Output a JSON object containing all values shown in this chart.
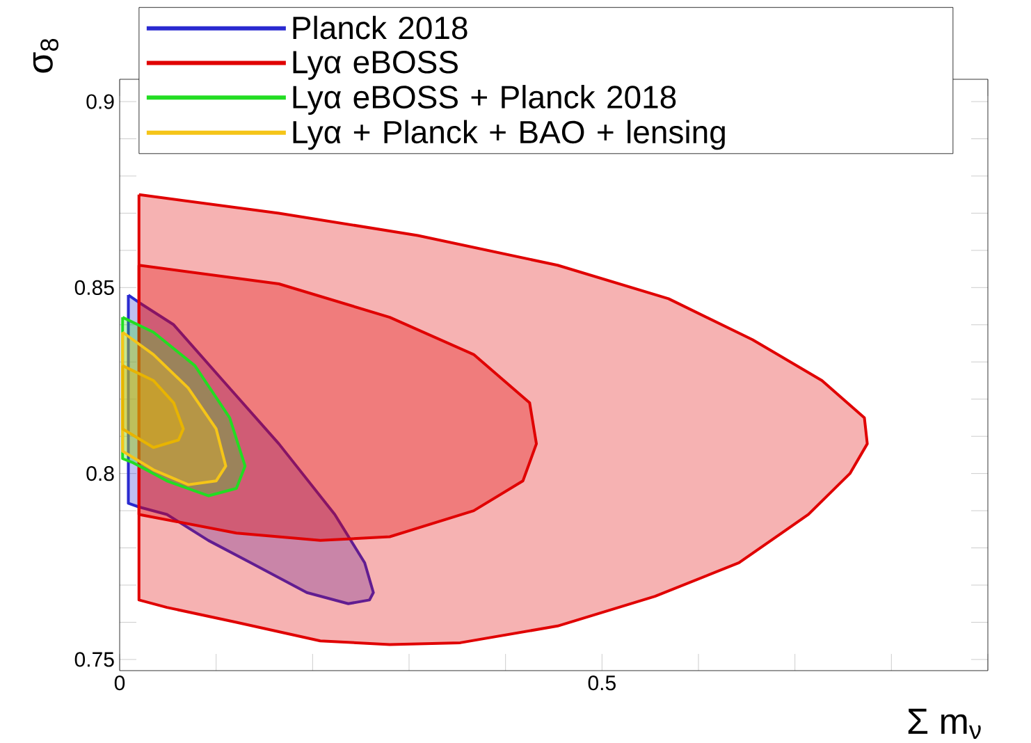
{
  "chart_data": {
    "type": "area",
    "xlabel": "Σ m$_{ν}$",
    "ylabel": "σ$_{8}$",
    "xlim": [
      0,
      0.9
    ],
    "ylim": [
      0.747,
      0.906
    ],
    "xticks": [
      0,
      {
        "value": 0.1,
        "label": null
      },
      {
        "value": 0.2,
        "label": null
      },
      {
        "value": 0.3,
        "label": null
      },
      {
        "value": 0.4,
        "label": null
      },
      0.5,
      {
        "value": 0.6,
        "label": null
      },
      {
        "value": 0.7,
        "label": null
      },
      {
        "value": 0.8,
        "label": null
      },
      {
        "value": 0.9,
        "label": null
      }
    ],
    "yticks": [
      0.75,
      {
        "value": 0.76,
        "label": null
      },
      {
        "value": 0.77,
        "label": null
      },
      {
        "value": 0.78,
        "label": null
      },
      {
        "value": 0.79,
        "label": null
      },
      0.8,
      {
        "value": 0.81,
        "label": null
      },
      {
        "value": 0.82,
        "label": null
      },
      {
        "value": 0.83,
        "label": null
      },
      {
        "value": 0.84,
        "label": null
      },
      0.85,
      {
        "value": 0.86,
        "label": null
      },
      {
        "value": 0.87,
        "label": null
      },
      {
        "value": 0.88,
        "label": null
      },
      {
        "value": 0.89,
        "label": null
      },
      0.9
    ],
    "legend": "top",
    "line_style": "solid",
    "series": [
      {
        "name": "Planck 2018",
        "color": "#2a2ad0",
        "x": [
          0.009,
          0.02,
          0.056,
          0.107,
          0.165,
          0.223,
          0.254,
          0.263,
          0.259,
          0.237,
          0.194,
          0.136,
          0.092,
          0.049,
          0.02,
          0.009,
          0.009
        ],
        "values": [
          0.848,
          0.846,
          0.84,
          0.825,
          0.808,
          0.789,
          0.776,
          0.768,
          0.766,
          0.765,
          0.768,
          0.776,
          0.782,
          0.789,
          0.791,
          0.792,
          0.848
        ]
      },
      {
        "name": "Lyα eBOSS",
        "color": "#e00000",
        "x": [
          0.02,
          0.165,
          0.309,
          0.454,
          0.569,
          0.656,
          0.728,
          0.772,
          0.775,
          0.757,
          0.714,
          0.642,
          0.555,
          0.454,
          0.353,
          0.28,
          0.208,
          0.121,
          0.049,
          0.02,
          0.02
        ],
        "values": [
          0.875,
          0.87,
          0.864,
          0.856,
          0.847,
          0.836,
          0.825,
          0.815,
          0.808,
          0.8,
          0.789,
          0.776,
          0.767,
          0.759,
          0.7545,
          0.754,
          0.755,
          0.76,
          0.764,
          0.766,
          0.875
        ]
      },
      {
        "color": "#e00000",
        "x": [
          0.02,
          0.165,
          0.28,
          0.367,
          0.425,
          0.432,
          0.418,
          0.367,
          0.28,
          0.208,
          0.121,
          0.02,
          0.02
        ],
        "values": [
          0.856,
          0.851,
          0.842,
          0.832,
          0.819,
          0.808,
          0.798,
          0.79,
          0.783,
          0.782,
          0.784,
          0.789,
          0.856
        ]
      },
      {
        "name": "Lyα eBOSS + Planck 2018",
        "color": "#22dd22",
        "x": [
          0.003,
          0.035,
          0.078,
          0.114,
          0.13,
          0.121,
          0.092,
          0.049,
          0.013,
          0.003,
          0.003
        ],
        "values": [
          0.842,
          0.838,
          0.829,
          0.815,
          0.802,
          0.796,
          0.794,
          0.798,
          0.803,
          0.804,
          0.842
        ]
      },
      {
        "name": "Lyα + Planck + BAO + lensing",
        "color": "#f5c518",
        "x": [
          0.003,
          0.035,
          0.071,
          0.1,
          0.11,
          0.1,
          0.071,
          0.035,
          0.003,
          0.003
        ],
        "values": [
          0.838,
          0.832,
          0.823,
          0.812,
          0.802,
          0.798,
          0.797,
          0.801,
          0.806,
          0.838
        ]
      },
      {
        "color": "#e8b400",
        "x": [
          0.003,
          0.035,
          0.056,
          0.066,
          0.061,
          0.035,
          0.003,
          0.003
        ],
        "values": [
          0.829,
          0.825,
          0.819,
          0.812,
          0.809,
          0.807,
          0.812,
          0.829
        ]
      }
    ]
  }
}
